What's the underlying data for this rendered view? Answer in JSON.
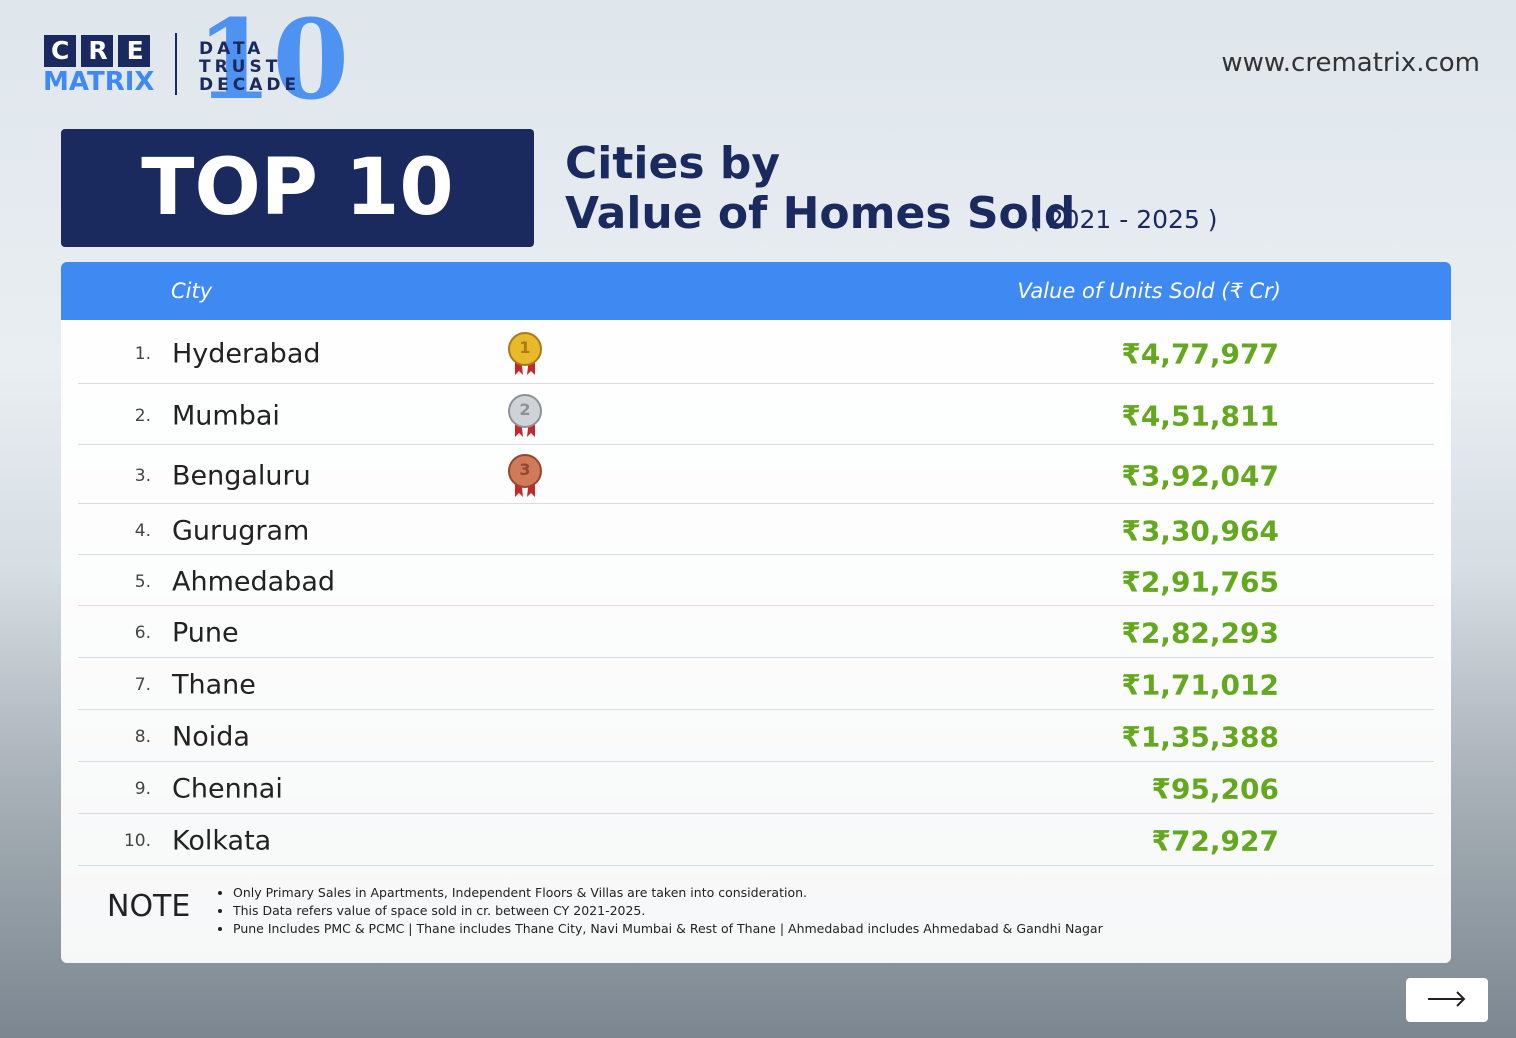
{
  "logo": {
    "brand_top": "CRE",
    "brand_bottom": "MATRIX",
    "tagline": [
      "DATA",
      "TRUST",
      "DECADE"
    ],
    "decade_number": "10"
  },
  "website": "www.crematrix.com",
  "header": {
    "badge": "TOP 10",
    "title_line1": "Cities by",
    "title_line2": "Value of Homes Sold",
    "period": "( 2021 - 2025 )"
  },
  "table": {
    "columns": [
      "City",
      "Value of Units Sold (₹ Cr)"
    ],
    "rows": [
      {
        "rank": "1.",
        "city": "Hyderabad",
        "medal": "1",
        "value": "₹4,77,977"
      },
      {
        "rank": "2.",
        "city": "Mumbai",
        "medal": "2",
        "value": "₹4,51,811"
      },
      {
        "rank": "3.",
        "city": "Bengaluru",
        "medal": "3",
        "value": "₹3,92,047"
      },
      {
        "rank": "4.",
        "city": "Gurugram",
        "value": "₹3,30,964"
      },
      {
        "rank": "5.",
        "city": "Ahmedabad",
        "value": "₹2,91,765"
      },
      {
        "rank": "6.",
        "city": "Pune",
        "value": "₹2,82,293"
      },
      {
        "rank": "7.",
        "city": "Thane",
        "value": "₹1,71,012"
      },
      {
        "rank": "8.",
        "city": "Noida",
        "value": "₹1,35,388"
      },
      {
        "rank": "9.",
        "city": "Chennai",
        "value": "₹95,206"
      },
      {
        "rank": "10.",
        "city": "Kolkata",
        "value": "₹72,927"
      }
    ]
  },
  "note": {
    "label": "NOTE",
    "items": [
      "Only Primary Sales in Apartments, Independent Floors & Villas are taken into consideration.",
      "This Data refers value of space sold in cr. between CY 2021-2025.",
      "Pune Includes PMC & PCMC | Thane includes Thane City, Navi Mumbai & Rest of Thane  | Ahmedabad includes Ahmedabad & Gandhi Nagar"
    ]
  }
}
